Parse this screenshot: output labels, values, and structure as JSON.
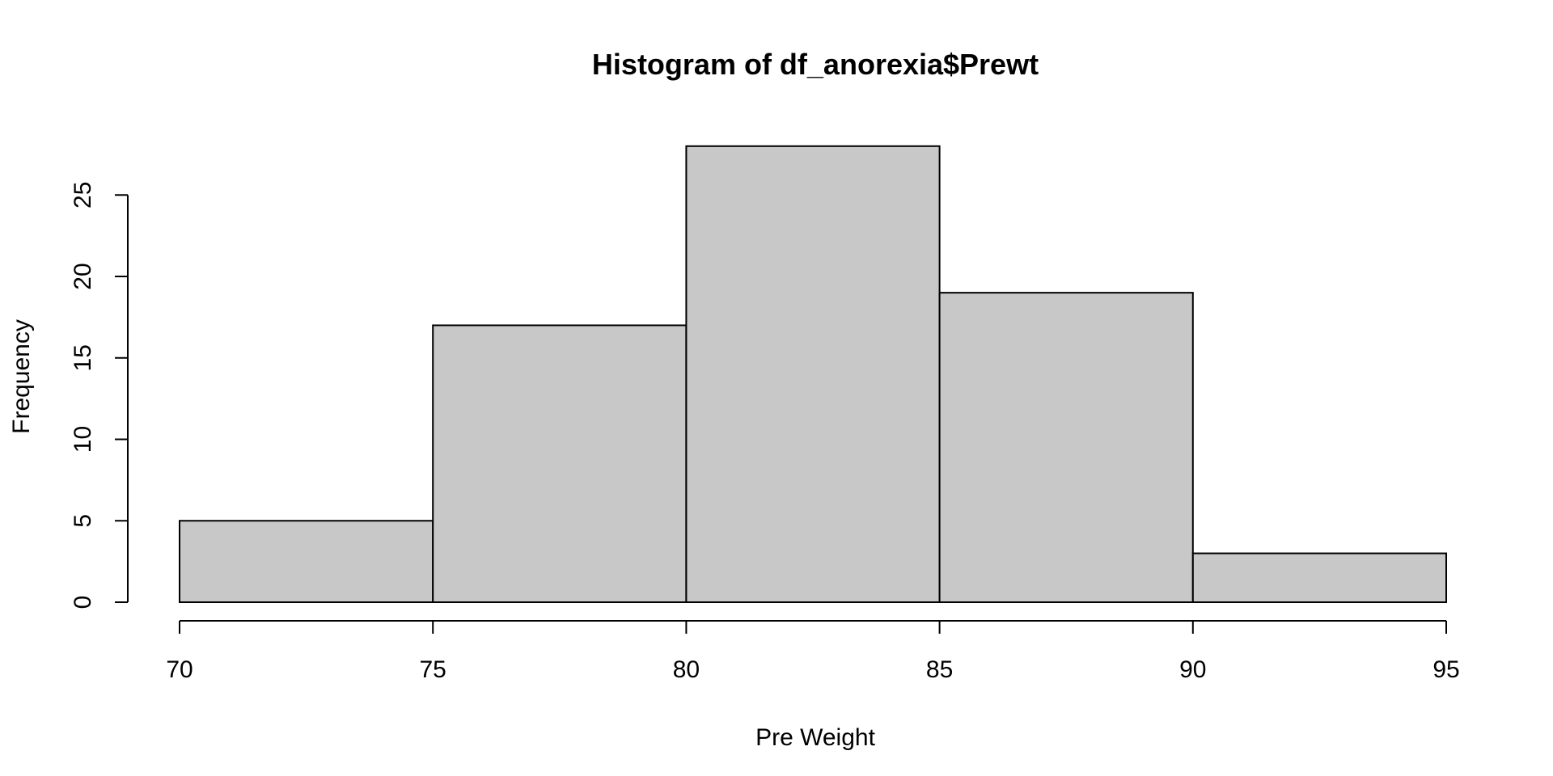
{
  "chart_data": {
    "type": "bar",
    "title": "Histogram of df_anorexia$Prewt",
    "xlabel": "Pre Weight",
    "ylabel": "Frequency",
    "bins": [
      {
        "from": 70,
        "to": 75,
        "count": 5
      },
      {
        "from": 75,
        "to": 80,
        "count": 17
      },
      {
        "from": 80,
        "to": 85,
        "count": 28
      },
      {
        "from": 85,
        "to": 90,
        "count": 19
      },
      {
        "from": 90,
        "to": 95,
        "count": 3
      }
    ],
    "xticks": [
      70,
      75,
      80,
      85,
      90,
      95
    ],
    "yticks": [
      0,
      5,
      10,
      15,
      20,
      25
    ],
    "xlim": [
      70,
      95
    ],
    "ylim": [
      0,
      28
    ],
    "bar_color": "#c8c8c8",
    "grid": false,
    "legend": "none"
  }
}
